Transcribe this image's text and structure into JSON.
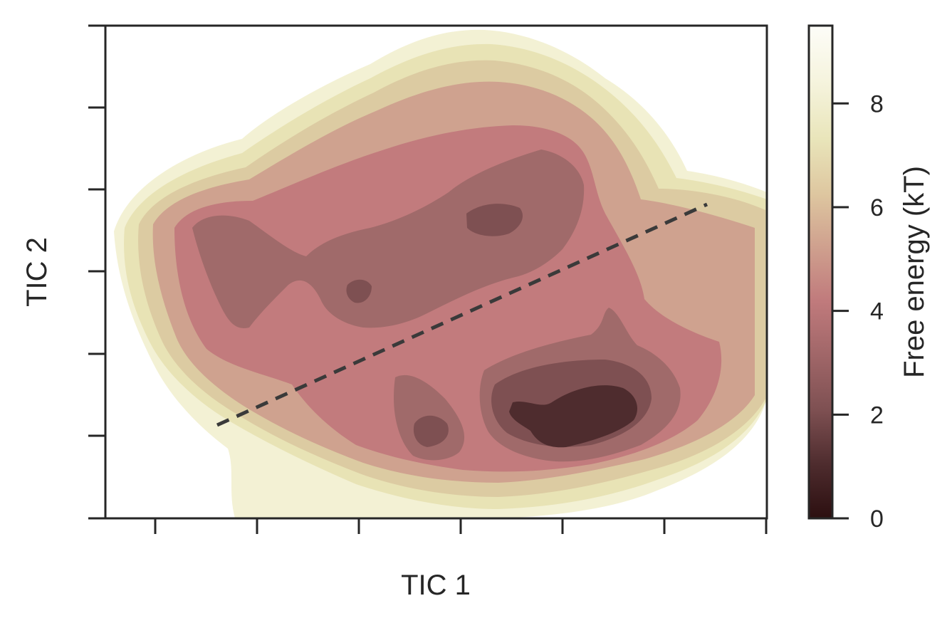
{
  "chart_data": {
    "type": "heatmap",
    "subtype": "filled-contour free-energy surface",
    "xlabel": "TIC 1",
    "ylabel": "TIC 2",
    "x_ticks_count": 7,
    "y_ticks_count": 7,
    "x_tick_labels_visible": false,
    "y_tick_labels_visible": false,
    "colorbar": {
      "label": "Free energy (kT)",
      "range": [
        0,
        9.5
      ],
      "ticks": [
        0,
        2,
        4,
        6,
        8
      ],
      "tick_labels": [
        "0",
        "2",
        "4",
        "6",
        "8"
      ],
      "colormap": "pink (reversed)",
      "colors": [
        "#2c0f10",
        "#4e2c2e",
        "#7e5052",
        "#a06668",
        "#c07a7c",
        "#cfa08e",
        "#dec7a0",
        "#e9e5ba",
        "#f5f3dc",
        "#ffffff"
      ]
    },
    "levels": [
      0,
      1,
      2,
      3,
      4,
      5,
      6,
      7,
      8
    ],
    "minima": [
      {
        "description": "global minimum (lower right basin)",
        "free_energy": 0.5
      },
      {
        "description": "upper center basin",
        "free_energy": 1.5
      },
      {
        "description": "lower center basin",
        "free_energy": 1.5
      },
      {
        "description": "small upper-middle basin",
        "free_energy": 2
      },
      {
        "description": "left basin",
        "free_energy": 2.5
      }
    ],
    "annotations": [
      {
        "type": "dashed-line",
        "description": "dividing line between upper and lower basins",
        "color": "#3a3a3a"
      }
    ],
    "grid": false,
    "legend": "none"
  }
}
